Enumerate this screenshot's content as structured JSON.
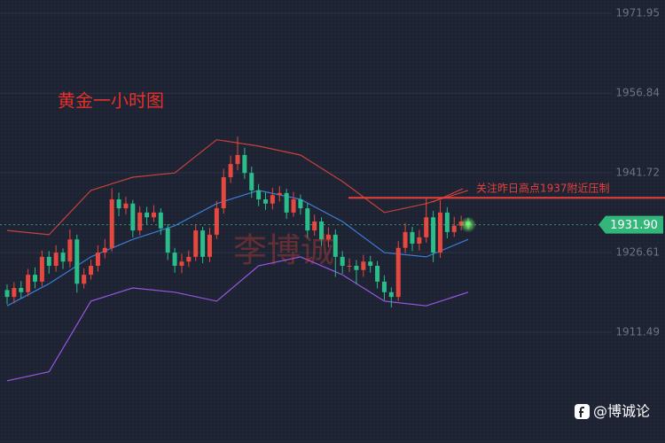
{
  "chart_data": {
    "type": "candlestick",
    "title": "黄金一小时图",
    "watermark": "李博诚",
    "annotation": "关注昨日高点1937附近压制",
    "footer": "@博诚论",
    "ylim": [
      1890.5,
      1974.5
    ],
    "yticks": [
      1911.49,
      1926.61,
      1941.72,
      1956.84,
      1971.95
    ],
    "grid": true,
    "up_color": "#e5483f",
    "down_color": "#2bbd8a",
    "open": [
      1919.5,
      1918.2,
      1919.9,
      1919.1,
      1922.4,
      1921.1,
      1925.8,
      1924.1,
      1926.6,
      1924.9,
      1929.1,
      1920.7,
      1922.4,
      1924.1,
      1926.6,
      1927.5,
      1936.7,
      1935.0,
      1935.9,
      1930.8,
      1934.2,
      1933.3,
      1934.2,
      1931.2,
      1926.6,
      1924.1,
      1924.9,
      1925.8,
      1930.8,
      1925.8,
      1930.0,
      1935.0,
      1940.9,
      1943.4,
      1945.1,
      1941.7,
      1938.4,
      1936.7,
      1935.9,
      1937.5,
      1937.9,
      1934.2,
      1936.7,
      1935.0,
      1930.8,
      1932.5,
      1929.1,
      1930.0,
      1925.8,
      1924.1,
      1924.1,
      1923.3,
      1924.9,
      1924.1,
      1921.1,
      1919.1,
      1918.2,
      1927.5,
      1930.5,
      1928.3,
      1929.5,
      1933.3,
      1926.6,
      1934.2,
      1930.5,
      1931.7,
      1932.5
    ],
    "high": [
      1920.6,
      1921.0,
      1921.2,
      1923.5,
      1923.8,
      1927.0,
      1926.9,
      1928.0,
      1927.4,
      1931.0,
      1930.0,
      1923.6,
      1925.3,
      1928.0,
      1929.2,
      1938.8,
      1938.0,
      1937.2,
      1936.6,
      1935.4,
      1935.3,
      1935.6,
      1935.0,
      1932.0,
      1927.5,
      1926.4,
      1927.0,
      1932.0,
      1931.5,
      1931.3,
      1936.4,
      1942.5,
      1945.0,
      1948.6,
      1946.5,
      1942.9,
      1939.6,
      1938.0,
      1938.9,
      1939.2,
      1938.7,
      1938.1,
      1937.6,
      1935.9,
      1933.8,
      1933.3,
      1931.4,
      1931.0,
      1926.9,
      1925.5,
      1925.2,
      1926.2,
      1926.0,
      1925.0,
      1922.3,
      1920.0,
      1928.8,
      1932.2,
      1931.5,
      1930.9,
      1937.0,
      1934.5,
      1936.5,
      1935.2,
      1933.4,
      1933.6,
      1933.2
    ],
    "low": [
      1916.8,
      1917.0,
      1917.9,
      1918.3,
      1919.8,
      1920.2,
      1922.6,
      1923.0,
      1923.5,
      1923.8,
      1919.0,
      1919.8,
      1921.5,
      1923.0,
      1925.5,
      1926.8,
      1933.5,
      1933.8,
      1929.5,
      1929.9,
      1932.0,
      1932.4,
      1930.0,
      1925.2,
      1922.8,
      1922.7,
      1923.9,
      1925.0,
      1924.6,
      1924.8,
      1929.2,
      1934.0,
      1939.8,
      1942.2,
      1940.6,
      1937.0,
      1935.4,
      1934.7,
      1934.8,
      1936.3,
      1933.0,
      1933.4,
      1933.8,
      1929.4,
      1929.8,
      1927.9,
      1927.6,
      1922.0,
      1922.6,
      1922.9,
      1920.6,
      1922.0,
      1922.8,
      1919.8,
      1917.6,
      1916.2,
      1917.4,
      1926.5,
      1926.9,
      1927.0,
      1928.5,
      1924.8,
      1925.6,
      1929.3,
      1929.6,
      1930.8,
      1931.0
    ],
    "close": [
      1918.2,
      1919.9,
      1919.1,
      1922.4,
      1921.1,
      1925.8,
      1924.1,
      1926.6,
      1924.9,
      1929.1,
      1920.7,
      1922.4,
      1924.1,
      1926.6,
      1927.5,
      1936.7,
      1935.0,
      1935.9,
      1930.8,
      1934.2,
      1933.3,
      1934.2,
      1931.2,
      1926.6,
      1924.1,
      1924.9,
      1925.8,
      1930.8,
      1925.8,
      1930.0,
      1935.0,
      1940.9,
      1943.4,
      1945.1,
      1941.7,
      1938.4,
      1936.7,
      1935.9,
      1937.5,
      1937.9,
      1934.2,
      1936.7,
      1935.0,
      1930.8,
      1932.5,
      1929.1,
      1930.0,
      1925.8,
      1924.1,
      1924.1,
      1923.3,
      1924.9,
      1924.1,
      1921.1,
      1919.1,
      1918.2,
      1927.5,
      1930.5,
      1928.3,
      1929.5,
      1933.3,
      1926.6,
      1934.2,
      1930.5,
      1931.7,
      1932.5,
      1931.9
    ],
    "bands": {
      "x": [
        0,
        6,
        12,
        18,
        24,
        30,
        36,
        42,
        48,
        54,
        60,
        66
      ],
      "series": [
        {
          "color": "#c9413a",
          "values": [
            1930.8,
            1930.0,
            1938.4,
            1940.9,
            1941.7,
            1948.0,
            1946.8,
            1945.1,
            1940.1,
            1934.2,
            1935.9,
            1938.4
          ]
        },
        {
          "color": "#3b7dd8",
          "values": [
            1916.5,
            1920.7,
            1925.8,
            1929.1,
            1931.7,
            1935.9,
            1938.4,
            1936.7,
            1932.5,
            1926.6,
            1925.8,
            1929.1
          ]
        },
        {
          "color": "#9a55e0",
          "values": [
            1902.3,
            1904.0,
            1917.4,
            1919.9,
            1919.1,
            1917.4,
            1924.1,
            1925.8,
            1922.4,
            1917.4,
            1916.5,
            1919.1
          ]
        }
      ]
    },
    "level": {
      "value": 1937,
      "color": "#e8413a"
    },
    "last_price": {
      "value": 1931.9,
      "label": "1931.90",
      "color": "#33b67a"
    }
  }
}
